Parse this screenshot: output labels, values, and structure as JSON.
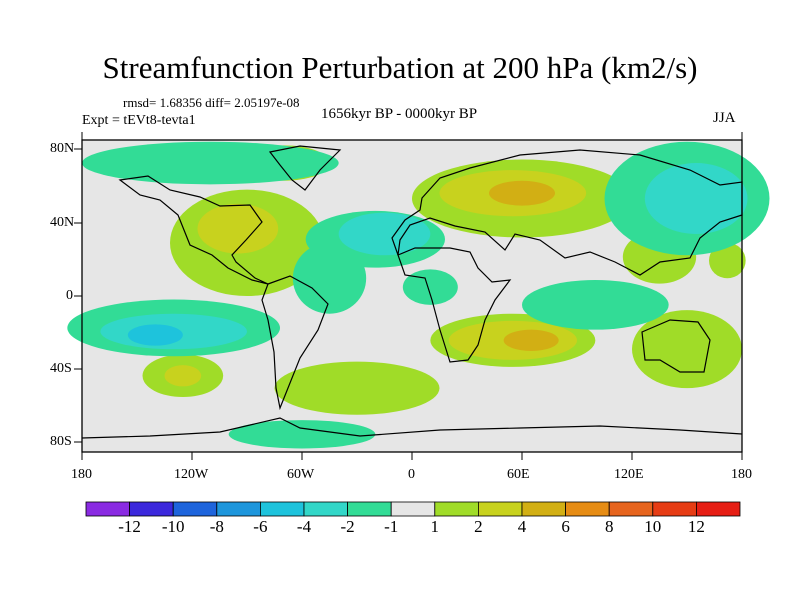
{
  "title": "Streamfunction Perturbation at 200 hPa (km2/s)",
  "stats": "rmsd= 1.68356 diff= 2.05197e-08",
  "experiment": "Expt = tEVt8-tevta1",
  "period": "1656kyr BP - 0000kyr BP",
  "season": "JJA",
  "lat_labels": [
    "80N",
    "40N",
    "0",
    "40S",
    "80S"
  ],
  "lon_labels": [
    "180",
    "120W",
    "60W",
    "0",
    "60E",
    "120E",
    "180"
  ],
  "colorbar": {
    "labels": [
      "-12",
      "-10",
      "-8",
      "-6",
      "-4",
      "-2",
      "-1",
      "1",
      "2",
      "4",
      "6",
      "8",
      "10",
      "12"
    ],
    "colors": [
      "#8a2be2",
      "#3c28dc",
      "#1e64dc",
      "#1e96dc",
      "#1ec3dc",
      "#32d7c8",
      "#32dc96",
      "#e6e6e6",
      "#a0dc28",
      "#c8d21e",
      "#d2af14",
      "#e68c14",
      "#e6641e",
      "#e63c14",
      "#e61e14"
    ]
  },
  "map": {
    "background": "#e6e6e6",
    "blobs": [
      {
        "level": "2",
        "color": "#a0dc28",
        "lon": -90,
        "lat": 30,
        "rlon": 42,
        "rlat": 30
      },
      {
        "level": "4",
        "color": "#c8d21e",
        "lon": -95,
        "lat": 38,
        "rlon": 22,
        "rlat": 14
      },
      {
        "level": "2",
        "color": "#a0dc28",
        "lon": 60,
        "lat": 55,
        "rlon": 60,
        "rlat": 22
      },
      {
        "level": "4",
        "color": "#c8d21e",
        "lon": 55,
        "lat": 58,
        "rlon": 40,
        "rlat": 13
      },
      {
        "level": "6",
        "color": "#d2af14",
        "lon": 60,
        "lat": 58,
        "rlon": 18,
        "rlat": 7
      },
      {
        "level": "2",
        "color": "#a0dc28",
        "lon": 55,
        "lat": -25,
        "rlon": 45,
        "rlat": 15
      },
      {
        "level": "4",
        "color": "#c8d21e",
        "lon": 55,
        "lat": -25,
        "rlon": 35,
        "rlat": 11
      },
      {
        "level": "6",
        "color": "#d2af14",
        "lon": 65,
        "lat": -25,
        "rlon": 15,
        "rlat": 6
      },
      {
        "level": "2",
        "color": "#a0dc28",
        "lon": -30,
        "lat": -52,
        "rlon": 45,
        "rlat": 15
      },
      {
        "level": "2",
        "color": "#a0dc28",
        "lon": -125,
        "lat": -45,
        "rlon": 22,
        "rlat": 12
      },
      {
        "level": "4",
        "color": "#c8d21e",
        "lon": -125,
        "lat": -45,
        "rlon": 10,
        "rlat": 6
      },
      {
        "level": "2",
        "color": "#a0dc28",
        "lon": 150,
        "lat": -30,
        "rlon": 30,
        "rlat": 22
      },
      {
        "level": "2",
        "color": "#a0dc28",
        "lon": 135,
        "lat": 22,
        "rlon": 20,
        "rlat": 15
      },
      {
        "level": "2",
        "color": "#a0dc28",
        "lon": 172,
        "lat": 20,
        "rlon": 10,
        "rlat": 10
      },
      {
        "level": "2",
        "color": "#a0dc28",
        "lon": -70,
        "lat": 75,
        "rlon": 25,
        "rlat": 10
      },
      {
        "level": "-1",
        "color": "#32dc96",
        "lon": -130,
        "lat": -18,
        "rlon": 58,
        "rlat": 16
      },
      {
        "level": "-2",
        "color": "#32d7c8",
        "lon": -130,
        "lat": -20,
        "rlon": 40,
        "rlat": 10
      },
      {
        "level": "-4",
        "color": "#1ec3dc",
        "lon": -140,
        "lat": -22,
        "rlon": 15,
        "rlat": 6
      },
      {
        "level": "-1",
        "color": "#32dc96",
        "lon": -20,
        "lat": 32,
        "rlon": 38,
        "rlat": 16
      },
      {
        "level": "-2",
        "color": "#32d7c8",
        "lon": -15,
        "lat": 35,
        "rlon": 25,
        "rlat": 12
      },
      {
        "level": "-1",
        "color": "#32dc96",
        "lon": -45,
        "lat": 10,
        "rlon": 20,
        "rlat": 20
      },
      {
        "level": "-1",
        "color": "#32dc96",
        "lon": 150,
        "lat": 55,
        "rlon": 45,
        "rlat": 32
      },
      {
        "level": "-2",
        "color": "#32d7c8",
        "lon": 155,
        "lat": 55,
        "rlon": 28,
        "rlat": 20
      },
      {
        "level": "-1",
        "color": "#32dc96",
        "lon": -110,
        "lat": 75,
        "rlon": 70,
        "rlat": 12
      },
      {
        "level": "-1",
        "color": "#32dc96",
        "lon": 100,
        "lat": -5,
        "rlon": 40,
        "rlat": 14
      },
      {
        "level": "-1",
        "color": "#32dc96",
        "lon": -60,
        "lat": -78,
        "rlon": 40,
        "rlat": 8
      },
      {
        "level": "-1",
        "color": "#32dc96",
        "lon": 10,
        "lat": 5,
        "rlon": 15,
        "rlat": 10
      }
    ]
  }
}
